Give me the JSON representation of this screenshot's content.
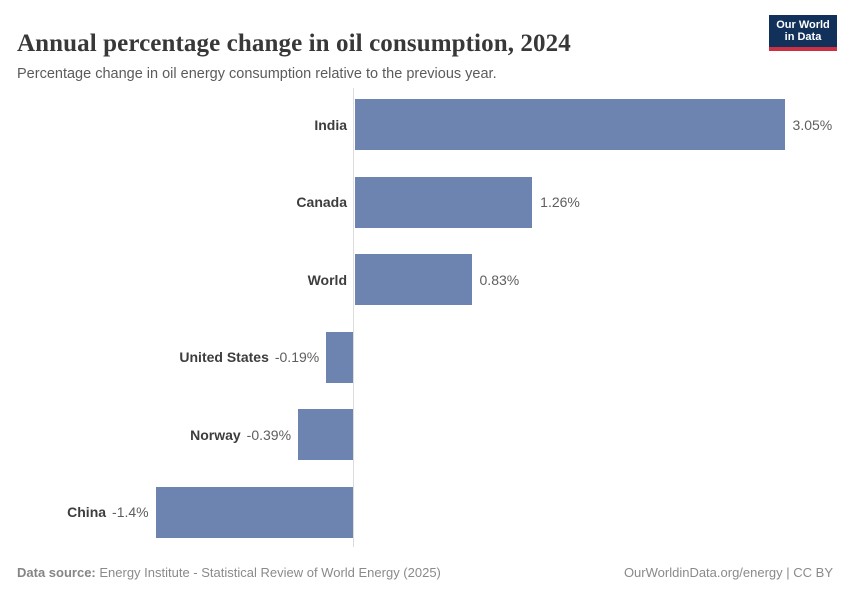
{
  "chart_data": {
    "type": "bar",
    "orientation": "horizontal",
    "title": "Annual percentage change in oil consumption, 2024",
    "subtitle": "Percentage change in oil energy consumption relative to the previous year.",
    "categories": [
      "India",
      "Canada",
      "World",
      "United States",
      "Norway",
      "China"
    ],
    "values": [
      3.05,
      1.26,
      0.83,
      -0.19,
      -0.39,
      -1.4
    ],
    "value_labels": [
      "3.05%",
      "1.26%",
      "0.83%",
      "-0.19%",
      "-0.39%",
      "-1.4%"
    ],
    "xlabel": "",
    "ylabel": "",
    "xlim": [
      -1.4,
      3.05
    ],
    "grid": false,
    "legend": false,
    "bar_color": "#6d84b0",
    "axis_color": "#dcdcdc"
  },
  "header": {
    "logo_line1": "Our World",
    "logo_line2": "in Data",
    "logo_bg": "#12315a",
    "logo_stripe": "#cb3043"
  },
  "footer": {
    "datasource_label": "Data source:",
    "datasource_text": " Energy Institute - Statistical Review of World Energy (2025)",
    "right_text": "OurWorldinData.org/energy | CC BY"
  }
}
